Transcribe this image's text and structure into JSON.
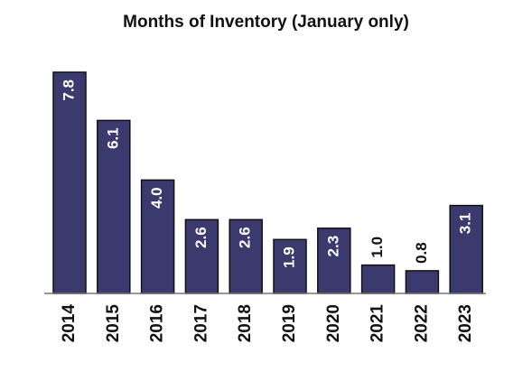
{
  "chart_data": {
    "type": "bar",
    "title": "Months of Inventory (January only)",
    "xlabel": "",
    "ylabel": "",
    "categories": [
      "2014",
      "2015",
      "2016",
      "2017",
      "2018",
      "2019",
      "2020",
      "2021",
      "2022",
      "2023"
    ],
    "values": [
      7.8,
      6.1,
      4.0,
      2.6,
      2.6,
      1.9,
      2.3,
      1.0,
      0.8,
      3.1
    ],
    "data_labels": [
      "7.8",
      "6.1",
      "4.0",
      "2.6",
      "2.6",
      "1.9",
      "2.3",
      "1.0",
      "0.8",
      "3.1"
    ],
    "ylim": [
      0,
      7.8
    ],
    "grid": false,
    "legend": "none",
    "colors": {
      "bar": "#3b3a6e",
      "bar_edge": "#111111",
      "label_inside": "#ffffff",
      "label_outside": "#111111"
    }
  }
}
